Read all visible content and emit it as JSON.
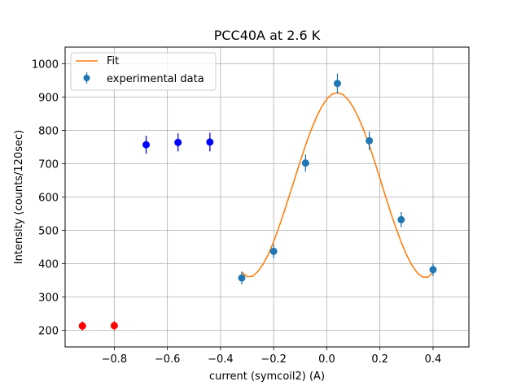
{
  "chart_data": {
    "type": "scatter",
    "title": "PCC40A at 2.6 K",
    "xlabel": "current (symcoil2) (A)",
    "ylabel": "Intensity (counts/120sec)",
    "xlim": [
      -0.985,
      0.535
    ],
    "ylim": [
      150,
      1050
    ],
    "xticks": [
      -0.8,
      -0.6,
      -0.4,
      -0.2,
      0.0,
      0.2,
      0.4
    ],
    "xtick_labels": [
      "−0.8",
      "−0.6",
      "−0.4",
      "−0.2",
      "0.0",
      "0.2",
      "0.4"
    ],
    "yticks": [
      200,
      300,
      400,
      500,
      600,
      700,
      800,
      900,
      1000
    ],
    "ytick_labels": [
      "200",
      "300",
      "400",
      "500",
      "600",
      "700",
      "800",
      "900",
      "1000"
    ],
    "grid": true,
    "legend_position": "top-left",
    "series": [
      {
        "name": "experimental data",
        "kind": "errorbar",
        "color": "#1f77b4",
        "x": [
          -0.32,
          -0.2,
          -0.08,
          0.04,
          0.16,
          0.28,
          0.4
        ],
        "y": [
          357,
          437,
          702,
          941,
          769,
          532,
          382
        ],
        "yerr": [
          19,
          21,
          26,
          30,
          28,
          23,
          19
        ]
      },
      {
        "name": "",
        "kind": "errorbar",
        "color": "#0000ff",
        "x": [
          -0.68,
          -0.56,
          -0.44
        ],
        "y": [
          757,
          764,
          765
        ],
        "yerr": [
          27,
          27,
          28
        ]
      },
      {
        "name": "",
        "kind": "errorbar",
        "color": "#ff0000",
        "x": [
          -0.92,
          -0.8
        ],
        "y": [
          213,
          214
        ],
        "yerr": [
          14,
          14
        ]
      },
      {
        "name": "Fit",
        "kind": "line",
        "color": "#ff7f0e",
        "x": [
          -0.32,
          -0.3,
          -0.28,
          -0.26,
          -0.24,
          -0.22,
          -0.2,
          -0.18,
          -0.16,
          -0.14,
          -0.12,
          -0.1,
          -0.08,
          -0.06,
          -0.04,
          -0.02,
          0.0,
          0.02,
          0.04,
          0.06,
          0.08,
          0.1,
          0.12,
          0.14,
          0.16,
          0.18,
          0.2,
          0.22,
          0.24,
          0.26,
          0.28,
          0.3,
          0.32,
          0.34,
          0.36,
          0.38,
          0.4
        ],
        "y": [
          375,
          361,
          362,
          376,
          398,
          428,
          466,
          510,
          557,
          606,
          657,
          707,
          755,
          799,
          838,
          870,
          894,
          909,
          913,
          908,
          893,
          869,
          837,
          799,
          755,
          707,
          656,
          605,
          555,
          508,
          465,
          427,
          396,
          373,
          360,
          359,
          374
        ]
      }
    ]
  }
}
